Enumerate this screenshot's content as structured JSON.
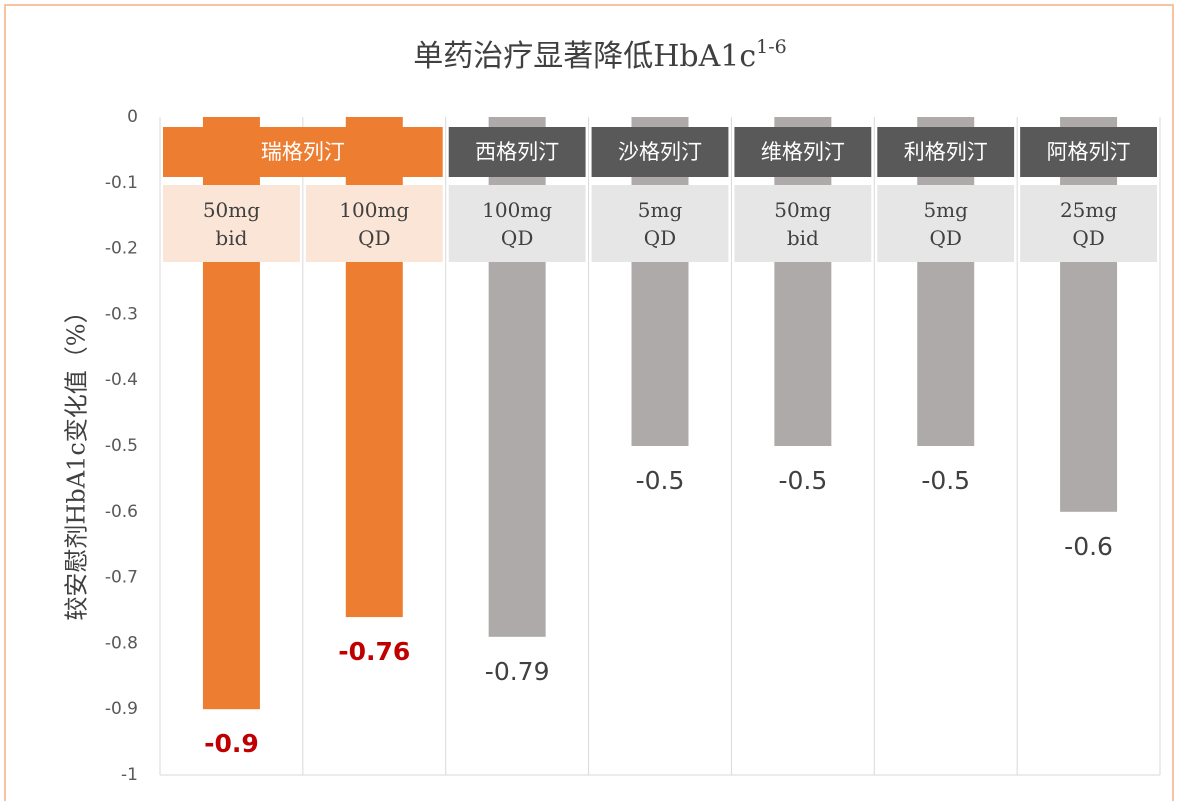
{
  "chart_data": {
    "type": "bar",
    "title": "单药治疗显著降低HbA1c",
    "title_superscript": "1-6",
    "ylabel": "较安慰剂HbA1c变化值（%）",
    "groups": [
      {
        "name": "瑞格列汀",
        "span": 2,
        "color": "#ed7d31",
        "sub_color": "#fbe5d6"
      },
      {
        "name": "西格列汀",
        "span": 1,
        "color": "#595959",
        "sub_color": "#e7e6e6"
      },
      {
        "name": "沙格列汀",
        "span": 1,
        "color": "#595959",
        "sub_color": "#e7e6e6"
      },
      {
        "name": "维格列汀",
        "span": 1,
        "color": "#595959",
        "sub_color": "#e7e6e6"
      },
      {
        "name": "利格列汀",
        "span": 1,
        "color": "#595959",
        "sub_color": "#e7e6e6"
      },
      {
        "name": "阿格列汀",
        "span": 1,
        "color": "#595959",
        "sub_color": "#e7e6e6"
      }
    ],
    "categories": [
      [
        "50mg",
        "bid"
      ],
      [
        "100mg",
        "QD"
      ],
      [
        "100mg",
        "QD"
      ],
      [
        "5mg",
        "QD"
      ],
      [
        "50mg",
        "bid"
      ],
      [
        "5mg",
        "QD"
      ],
      [
        "25mg",
        "QD"
      ]
    ],
    "values": [
      -0.9,
      -0.76,
      -0.79,
      -0.5,
      -0.5,
      -0.5,
      -0.6
    ],
    "colors": [
      "#ed7d31",
      "#ed7d31",
      "#aeaaaa",
      "#aeaaaa",
      "#aeaaaa",
      "#aeaaaa",
      "#aeaaaa"
    ],
    "value_label_colors": [
      "#c00000",
      "#c00000",
      "#404040",
      "#404040",
      "#404040",
      "#404040",
      "#404040"
    ],
    "value_label_bold": [
      true,
      true,
      false,
      false,
      false,
      false,
      false
    ],
    "ylim": [
      -1,
      0
    ],
    "yticks": [
      0,
      -0.1,
      -0.2,
      -0.3,
      -0.4,
      -0.5,
      -0.6,
      -0.7,
      -0.8,
      -0.9,
      -1
    ]
  }
}
